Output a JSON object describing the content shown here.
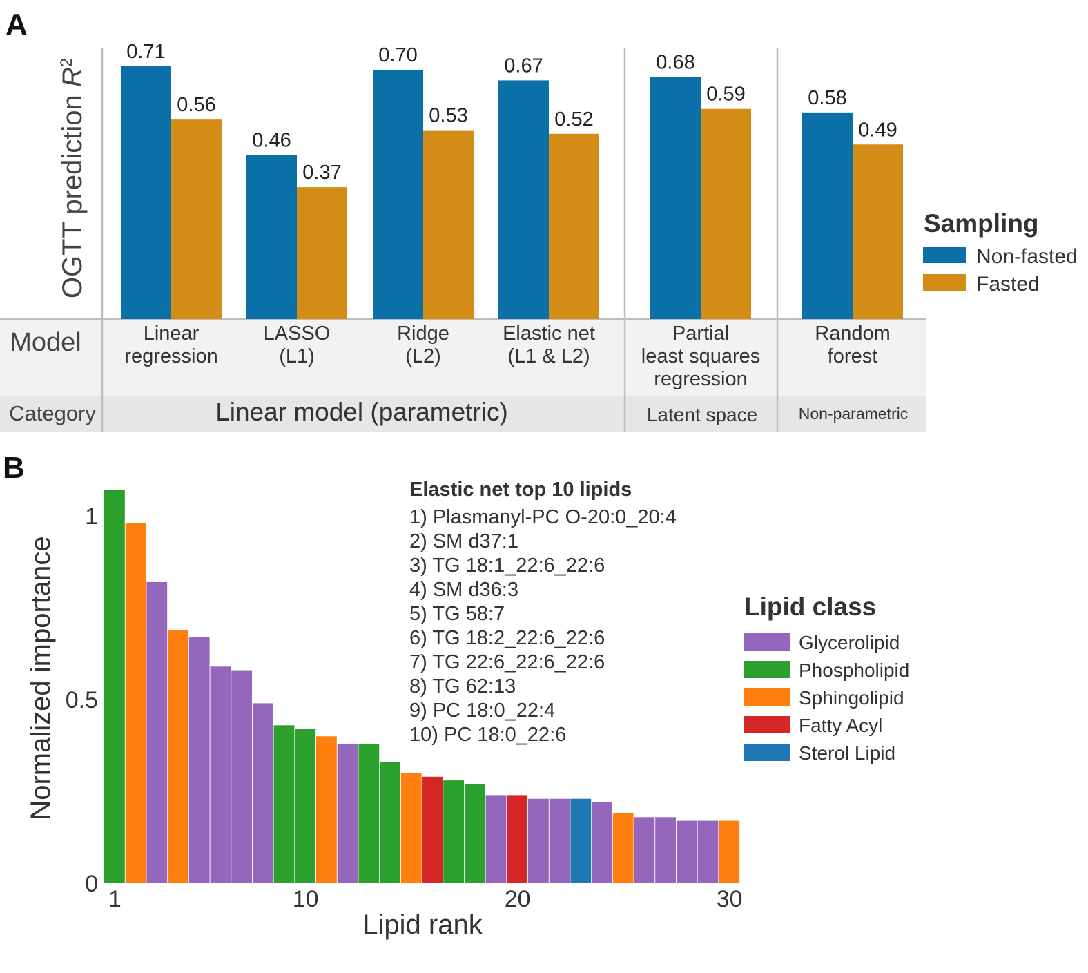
{
  "panel_a": {
    "label": "A",
    "ylabel_main": "OGTT prediction ",
    "ylabel_italic": "R",
    "ylabel_sup": "2",
    "table": {
      "model_header": "Model",
      "category_header": "Category",
      "categories": [
        {
          "label": "Linear model (parametric)",
          "size": "large"
        },
        {
          "label": "Latent space",
          "size": "medium"
        },
        {
          "label": "Non-parametric",
          "size": "small"
        }
      ]
    },
    "legend": {
      "title": "Sampling",
      "items": [
        {
          "label": "Non-fasted",
          "color": "#0b6fa8"
        },
        {
          "label": "Fasted",
          "color": "#d38d16"
        }
      ]
    }
  },
  "panel_b": {
    "label": "B",
    "xlabel": "Lipid rank",
    "ylabel": "Normalized importance",
    "top_list": {
      "title": "Elastic net top 10 lipids",
      "items": [
        "1) Plasmanyl-PC O-20:0_20:4",
        "2) SM d37:1",
        "3) TG 18:1_22:6_22:6",
        "4) SM d36:3",
        "5) TG 58:7",
        "6) TG 18:2_22:6_22:6",
        "7) TG 22:6_22:6_22:6",
        "8) TG 62:13",
        "9) PC 18:0_22:4",
        "10) PC 18:0_22:6"
      ]
    },
    "legend": {
      "title": "Lipid class",
      "items": [
        {
          "label": "Glycerolipid",
          "color": "#9467bd"
        },
        {
          "label": "Phospholipid",
          "color": "#2ca02c"
        },
        {
          "label": "Sphingolipid",
          "color": "#ff7f0e"
        },
        {
          "label": "Fatty Acyl",
          "color": "#d62728"
        },
        {
          "label": "Sterol Lipid",
          "color": "#1f77b4"
        }
      ]
    }
  },
  "chart_data": [
    {
      "type": "bar",
      "title": "",
      "ylabel": "OGTT prediction R2",
      "xlabel": "Model",
      "categories": [
        [
          "Linear",
          "regression"
        ],
        [
          "LASSO",
          "(L1)"
        ],
        [
          "Ridge",
          "(L2)"
        ],
        [
          "Elastic net",
          "(L1 & L2)"
        ],
        [
          "Partial",
          "least squares",
          "regression"
        ],
        [
          "Random",
          "forest"
        ]
      ],
      "groups": [
        "Linear model (parametric)",
        "Linear model (parametric)",
        "Linear model (parametric)",
        "Linear model (parametric)",
        "Latent space",
        "Non-parametric"
      ],
      "series": [
        {
          "name": "Non-fasted",
          "color": "#0b6fa8",
          "values": [
            0.71,
            0.46,
            0.7,
            0.67,
            0.68,
            0.58
          ],
          "labels": [
            "0.71",
            "0.46",
            "0.70",
            "0.67",
            "0.68",
            "0.58"
          ]
        },
        {
          "name": "Fasted",
          "color": "#d38d16",
          "values": [
            0.56,
            0.37,
            0.53,
            0.52,
            0.59,
            0.49
          ],
          "labels": [
            "0.56",
            "0.37",
            "0.53",
            "0.52",
            "0.59",
            "0.49"
          ]
        }
      ],
      "ylim": [
        0,
        0.76
      ],
      "legend_position": "right",
      "grid": false
    },
    {
      "type": "bar",
      "title": "",
      "xlabel": "Lipid rank",
      "ylabel": "Normalized importance",
      "x": [
        1,
        2,
        3,
        4,
        5,
        6,
        7,
        8,
        9,
        10,
        11,
        12,
        13,
        14,
        15,
        16,
        17,
        18,
        19,
        20,
        21,
        22,
        23,
        24,
        25,
        26,
        27,
        28,
        29,
        30
      ],
      "xticks": [
        "1",
        "10",
        "20",
        "30"
      ],
      "xtick_values": [
        1,
        10,
        20,
        30
      ],
      "yticks": [
        "0",
        "0.5",
        "1"
      ],
      "ytick_values": [
        0,
        0.5,
        1
      ],
      "values": [
        1.07,
        0.98,
        0.82,
        0.69,
        0.67,
        0.59,
        0.58,
        0.49,
        0.43,
        0.42,
        0.4,
        0.38,
        0.38,
        0.33,
        0.3,
        0.29,
        0.28,
        0.27,
        0.24,
        0.24,
        0.23,
        0.23,
        0.23,
        0.22,
        0.19,
        0.18,
        0.18,
        0.17,
        0.17,
        0.17
      ],
      "classes": [
        "Phospholipid",
        "Sphingolipid",
        "Glycerolipid",
        "Sphingolipid",
        "Glycerolipid",
        "Glycerolipid",
        "Glycerolipid",
        "Glycerolipid",
        "Phospholipid",
        "Phospholipid",
        "Sphingolipid",
        "Glycerolipid",
        "Phospholipid",
        "Phospholipid",
        "Sphingolipid",
        "Fatty Acyl",
        "Phospholipid",
        "Phospholipid",
        "Glycerolipid",
        "Fatty Acyl",
        "Glycerolipid",
        "Glycerolipid",
        "Sterol Lipid",
        "Glycerolipid",
        "Sphingolipid",
        "Glycerolipid",
        "Glycerolipid",
        "Glycerolipid",
        "Glycerolipid",
        "Sphingolipid"
      ],
      "ylim": [
        0,
        1.07
      ],
      "legend_position": "right",
      "grid": false
    }
  ]
}
